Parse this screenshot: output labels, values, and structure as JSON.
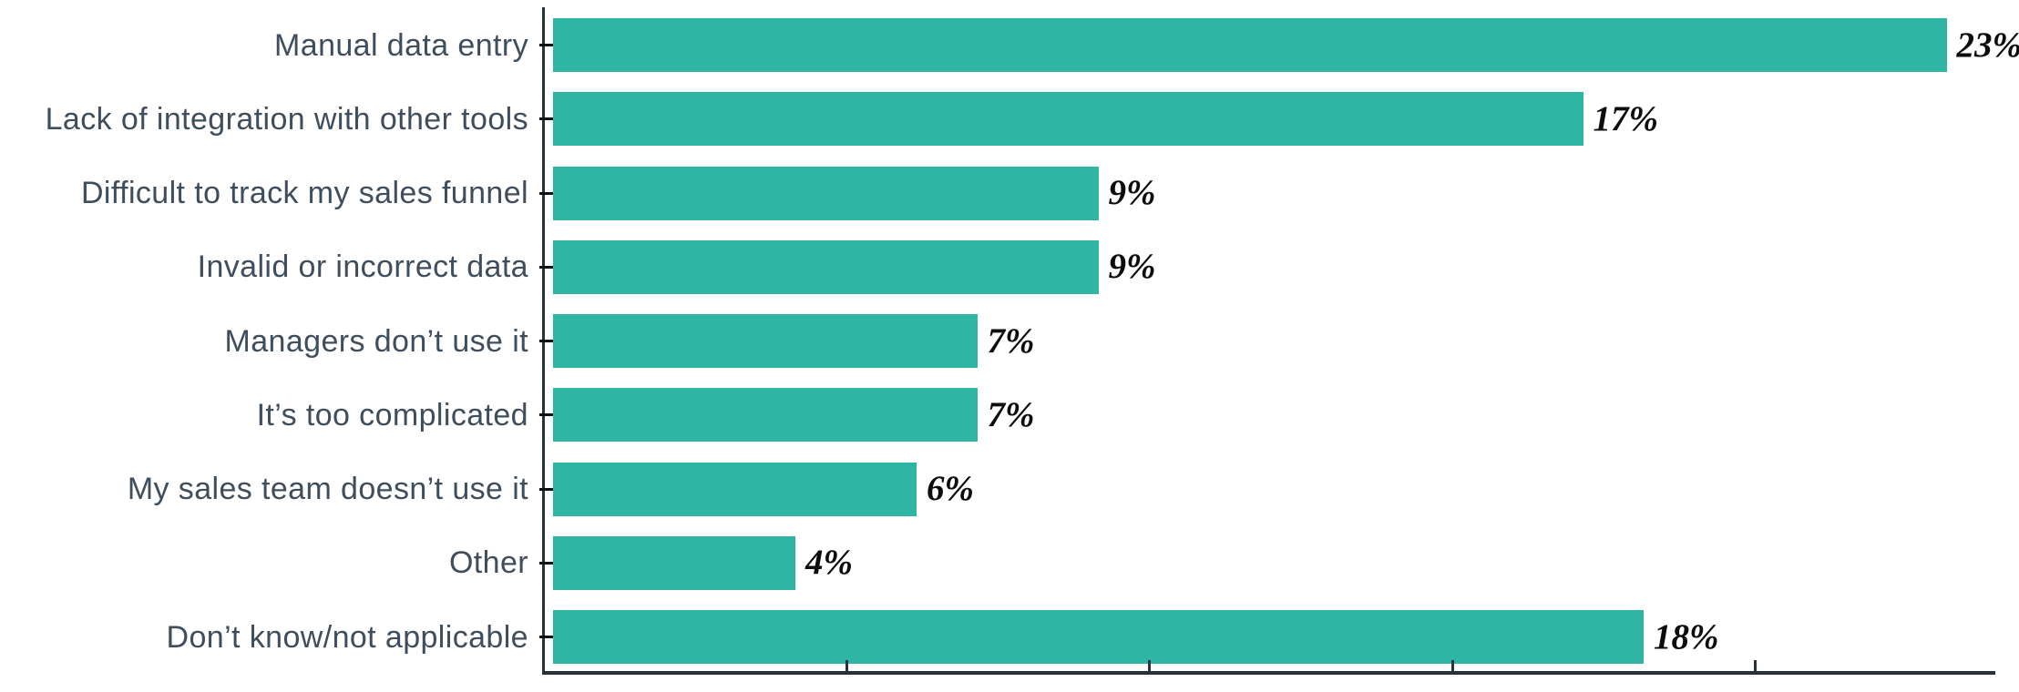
{
  "chart_data": {
    "type": "bar",
    "orientation": "horizontal",
    "title": "",
    "xlabel": "",
    "ylabel": "",
    "categories": [
      "Manual data entry",
      "Lack of integration with other tools",
      "Difficult to track my sales funnel",
      "Invalid or incorrect data",
      "Managers don’t use it",
      "It’s too complicated",
      "My sales team doesn’t use it",
      "Other",
      "Don’t know/not applicable"
    ],
    "values": [
      23,
      17,
      9,
      9,
      7,
      7,
      6,
      4,
      18
    ],
    "value_labels": [
      "23%",
      "17%",
      "9%",
      "9%",
      "7%",
      "7%",
      "6%",
      "4%",
      "18%"
    ],
    "xlim": [
      0,
      24
    ],
    "x_tick_step": 5,
    "x_ticks_shown": [
      5,
      10,
      15,
      20
    ],
    "x_tick_labels_visible": false,
    "grid": false,
    "legend": false,
    "colors": {
      "bar": "#2fb5a3",
      "axis": "#27323a",
      "category_label": "#3f4e5d",
      "value_label": "#0d0d0d",
      "background": "#ffffff"
    }
  }
}
